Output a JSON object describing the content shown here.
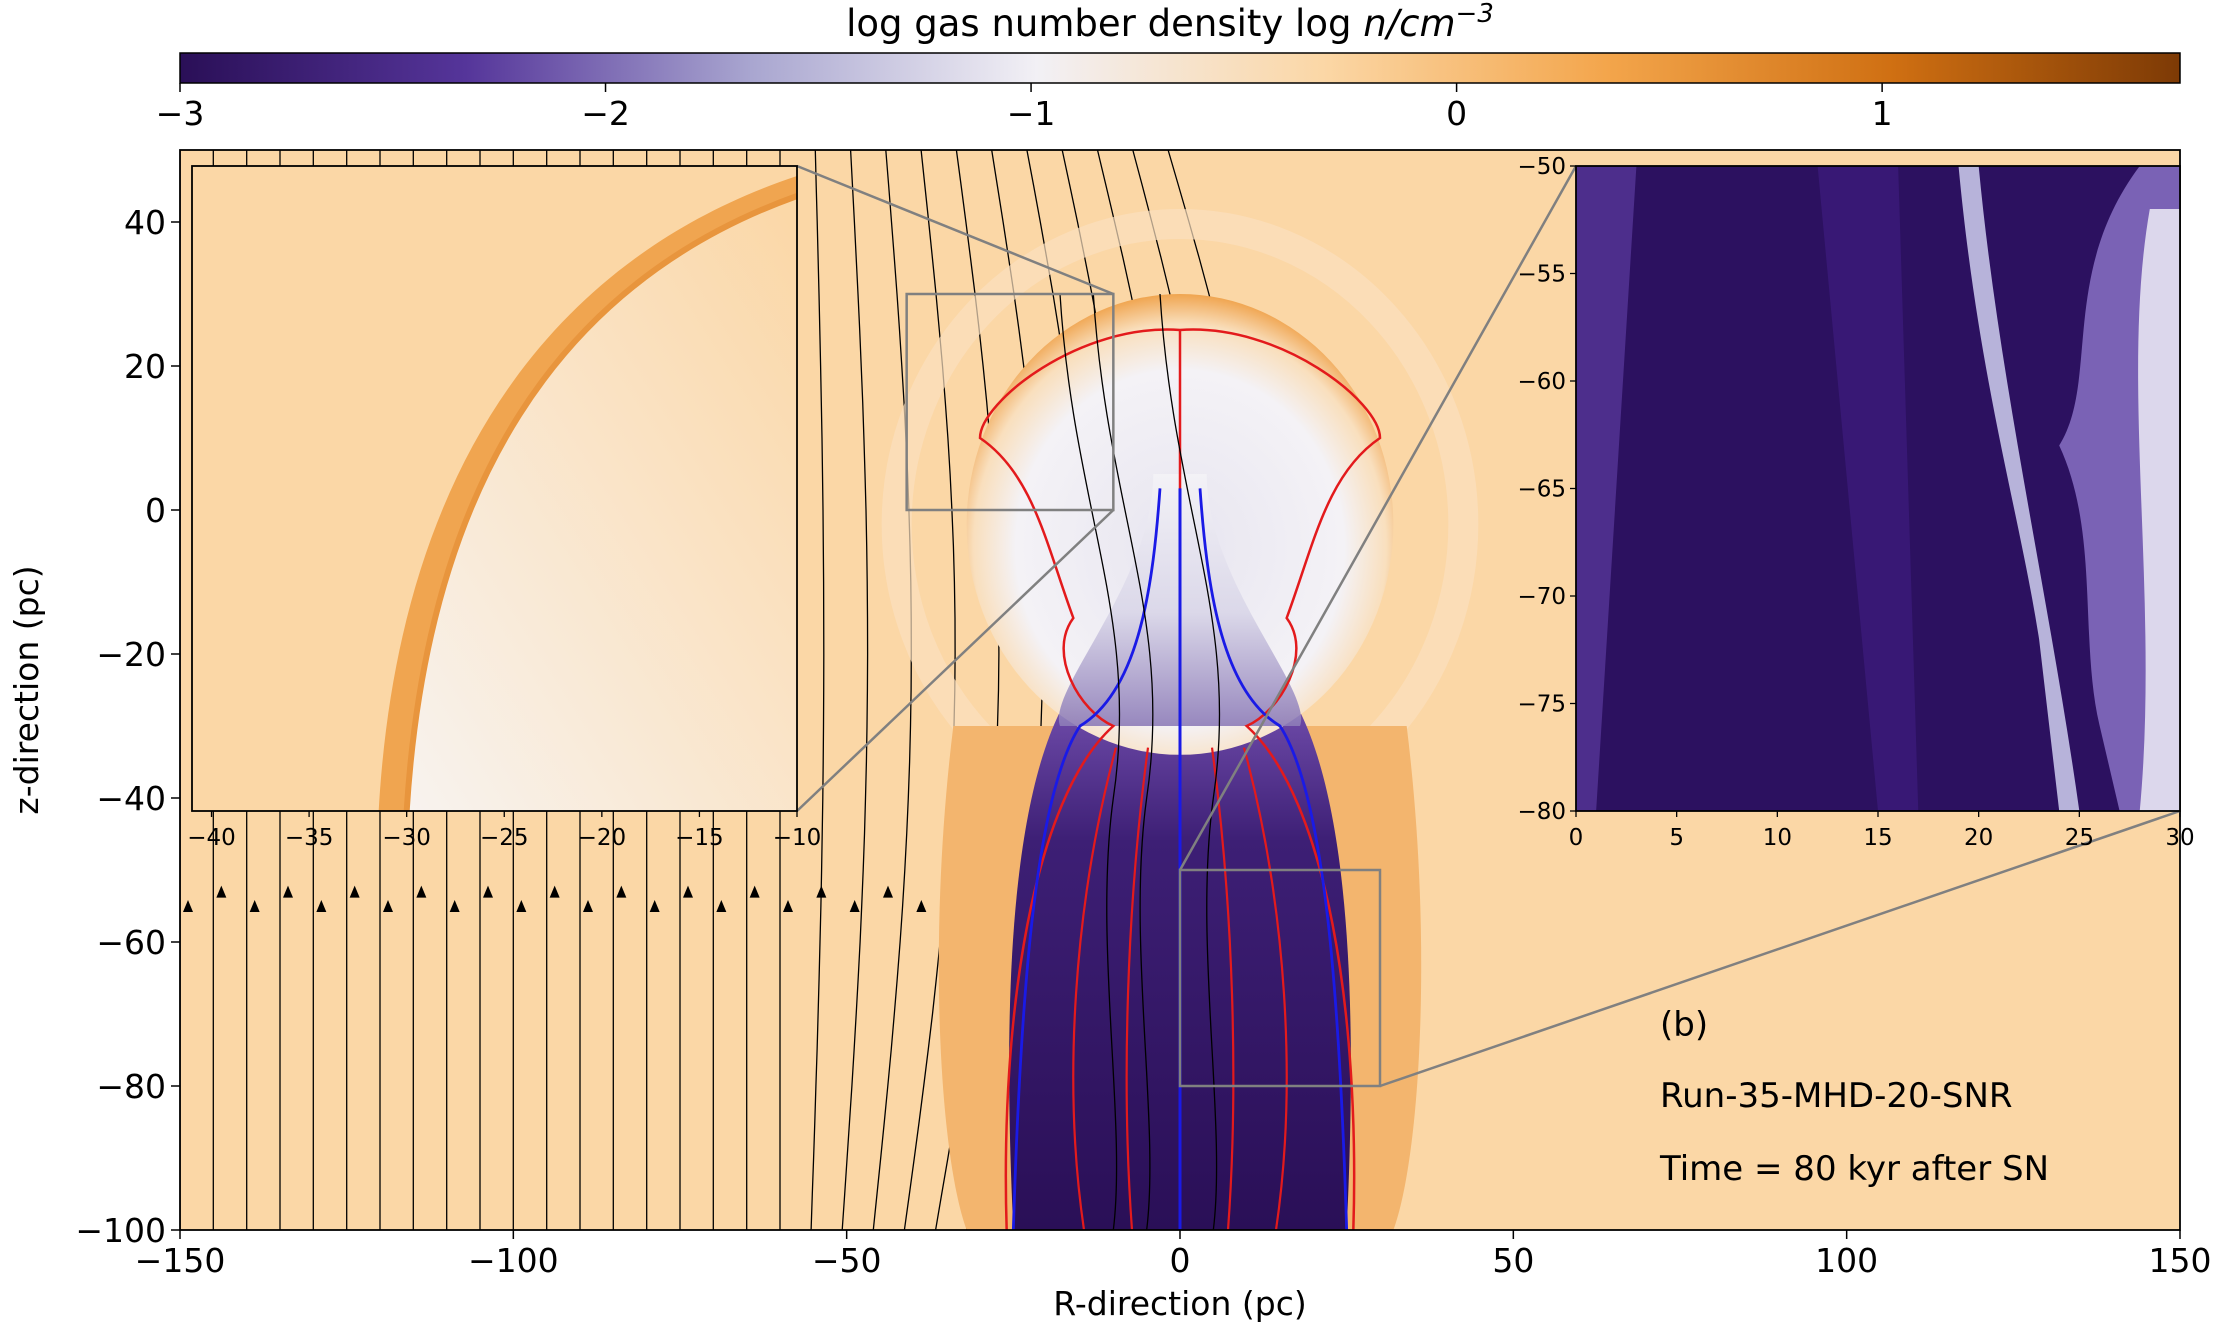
{
  "chart_data": {
    "type": "heatmap",
    "colorbar": {
      "label_prefix": "log gas number density log ",
      "label_var": "n",
      "label_unit": "/cm",
      "label_exp": "−3",
      "ticks": [
        "−3",
        "−2",
        "−1",
        "0",
        "1"
      ],
      "tick_values": [
        -3,
        -2,
        -1,
        0,
        1
      ],
      "range": [
        -3,
        1.7
      ],
      "colormap": [
        "#2a0f57",
        "#55359a",
        "#a9a6d0",
        "#f2f0f5",
        "#fbd7a6",
        "#f3a54b",
        "#cf6f12",
        "#7d3a05"
      ]
    },
    "main": {
      "xlabel": "R-direction (pc)",
      "ylabel": "z-direction (pc)",
      "xlim": [
        -150,
        150
      ],
      "ylim": [
        -100,
        50
      ],
      "xticks": [
        "−150",
        "−100",
        "−50",
        "0",
        "50",
        "100",
        "150"
      ],
      "xtick_values": [
        -150,
        -100,
        -50,
        0,
        50,
        100,
        150
      ],
      "yticks": [
        "40",
        "20",
        "0",
        "−20",
        "−40",
        "−60",
        "−80",
        "−100"
      ],
      "ytick_values": [
        40,
        20,
        0,
        -20,
        -40,
        -60,
        -80,
        -100
      ],
      "annotations": [
        "(b)",
        "Run-35-MHD-20-SNR",
        "Time = 80 kyr after SN"
      ],
      "remnant": {
        "cx": 0,
        "cy": -2,
        "rx": 32,
        "ry": 32
      },
      "chimney_half_width": 28,
      "field_lines_x": [
        -150,
        -145,
        -140,
        -135,
        -130,
        -125,
        -120,
        -115,
        -110,
        -105,
        -100,
        -95,
        -90,
        -85,
        -80,
        -75,
        -70,
        -65,
        -60,
        -55,
        -50,
        -45,
        -40,
        -35,
        -30,
        -25,
        -20,
        -15,
        -10,
        -5
      ],
      "contour_colors": {
        "outer": "#e31a1c",
        "inner": "#1a1ae6",
        "field": "#000000",
        "inset_box": "#808080"
      }
    },
    "inset_left": {
      "xlim": [
        -41,
        -10
      ],
      "ylim": [
        0,
        30
      ],
      "xticks": [
        "−40",
        "−35",
        "−30",
        "−25",
        "−20",
        "−15",
        "−10"
      ],
      "xtick_values": [
        -40,
        -35,
        -30,
        -25,
        -20,
        -15,
        -10
      ]
    },
    "inset_right": {
      "xlim": [
        0,
        30
      ],
      "ylim": [
        -80,
        -50
      ],
      "xticks": [
        "0",
        "5",
        "10",
        "15",
        "20",
        "25",
        "30"
      ],
      "xtick_values": [
        0,
        5,
        10,
        15,
        20,
        25,
        30
      ],
      "yticks": [
        "−50",
        "−55",
        "−60",
        "−65",
        "−70",
        "−75",
        "−80"
      ],
      "ytick_values": [
        -50,
        -55,
        -60,
        -65,
        -70,
        -75,
        -80
      ]
    }
  }
}
